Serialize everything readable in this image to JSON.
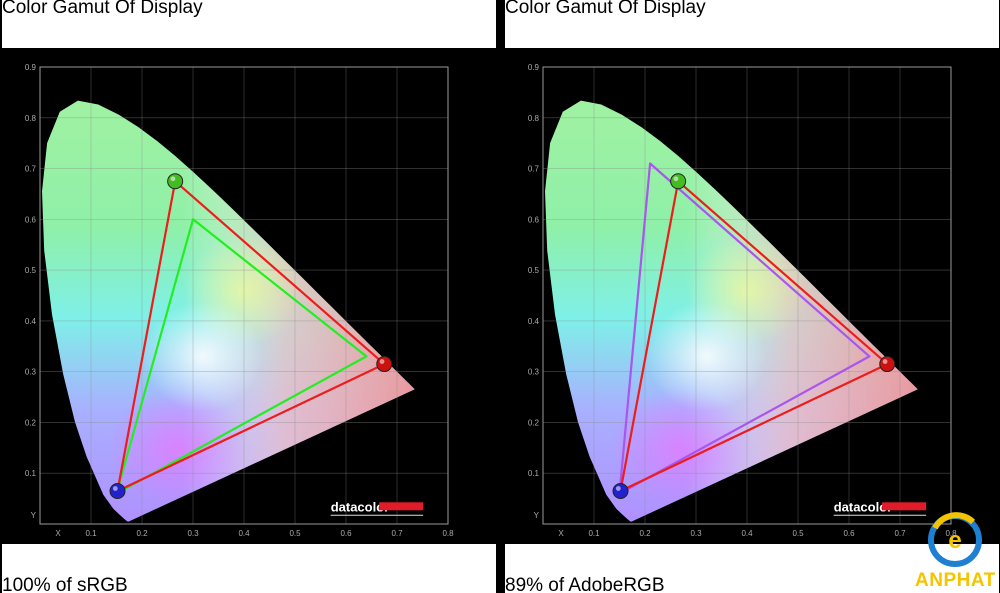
{
  "chart_data": [
    {
      "type": "scatter",
      "title": "Color Gamut Of Display",
      "caption": "100% of sRGB",
      "xlim": [
        0,
        0.8
      ],
      "ylim": [
        0,
        0.9
      ],
      "x_ticks": [
        "X",
        "0.1",
        "0.2",
        "0.3",
        "0.4",
        "0.5",
        "0.6",
        "0.7",
        "0.8"
      ],
      "y_ticks": [
        "Y",
        "0.1",
        "0.2",
        "0.3",
        "0.4",
        "0.5",
        "0.6",
        "0.7",
        "0.8",
        "0.9"
      ],
      "grid": true,
      "series": [
        {
          "color": "#ee1c1c",
          "points": [
            {
              "x": 0.675,
              "y": 0.315
            },
            {
              "x": 0.265,
              "y": 0.675
            },
            {
              "x": 0.152,
              "y": 0.065
            }
          ]
        },
        {
          "color": "#22ee22",
          "points": [
            {
              "x": 0.64,
              "y": 0.33
            },
            {
              "x": 0.3,
              "y": 0.6
            },
            {
              "x": 0.15,
              "y": 0.06
            }
          ]
        }
      ],
      "primaries": [
        {
          "x": 0.675,
          "y": 0.315,
          "color": "#cc1111"
        },
        {
          "x": 0.265,
          "y": 0.675,
          "color": "#44bb22"
        },
        {
          "x": 0.152,
          "y": 0.065,
          "color": "#2222cc"
        }
      ],
      "logo": "datacolor"
    },
    {
      "type": "scatter",
      "title": "Color Gamut Of Display",
      "caption": "89% of AdobeRGB",
      "xlim": [
        0,
        0.8
      ],
      "ylim": [
        0,
        0.9
      ],
      "x_ticks": [
        "X",
        "0.1",
        "0.2",
        "0.3",
        "0.4",
        "0.5",
        "0.6",
        "0.7",
        "0.8"
      ],
      "y_ticks": [
        "Y",
        "0.1",
        "0.2",
        "0.3",
        "0.4",
        "0.5",
        "0.6",
        "0.7",
        "0.8",
        "0.9"
      ],
      "grid": true,
      "series": [
        {
          "color": "#ee1c1c",
          "points": [
            {
              "x": 0.675,
              "y": 0.315
            },
            {
              "x": 0.265,
              "y": 0.675
            },
            {
              "x": 0.152,
              "y": 0.065
            }
          ]
        },
        {
          "color": "#aa55ee",
          "points": [
            {
              "x": 0.64,
              "y": 0.33
            },
            {
              "x": 0.21,
              "y": 0.71
            },
            {
              "x": 0.15,
              "y": 0.06
            }
          ]
        }
      ],
      "primaries": [
        {
          "x": 0.675,
          "y": 0.315,
          "color": "#cc1111"
        },
        {
          "x": 0.265,
          "y": 0.675,
          "color": "#44bb22"
        },
        {
          "x": 0.152,
          "y": 0.065,
          "color": "#2222cc"
        }
      ],
      "logo": "datacolor"
    }
  ],
  "brand": {
    "text": "ANPHAT"
  }
}
